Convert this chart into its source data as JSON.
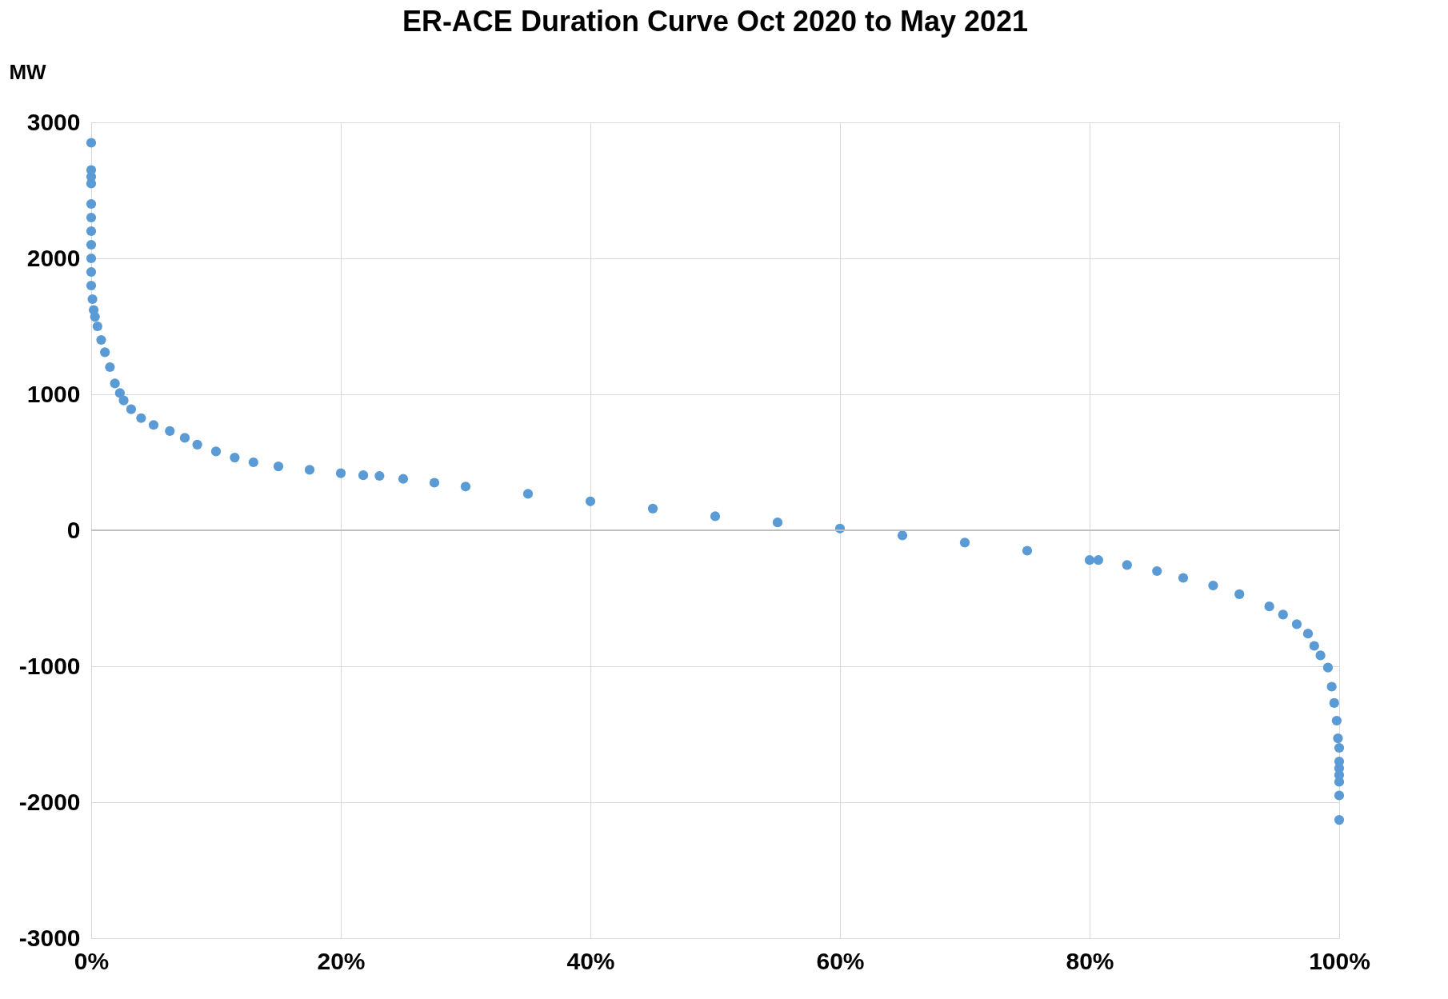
{
  "chart_data": {
    "type": "scatter",
    "title": "ER-ACE Duration Curve Oct 2020 to May 2021",
    "ylabel": "MW",
    "x": [
      0,
      0,
      0,
      0,
      0,
      0,
      0,
      0,
      0,
      0,
      0,
      0.001,
      0.002,
      0.003,
      0.005,
      0.008,
      0.011,
      0.015,
      0.019,
      0.023,
      0.026,
      0.032,
      0.04,
      0.05,
      0.063,
      0.075,
      0.085,
      0.1,
      0.115,
      0.13,
      0.15,
      0.175,
      0.2,
      0.218,
      0.231,
      0.25,
      0.275,
      0.3,
      0.35,
      0.4,
      0.45,
      0.5,
      0.55,
      0.6,
      0.65,
      0.7,
      0.75,
      0.8,
      0.807,
      0.83,
      0.854,
      0.875,
      0.899,
      0.92,
      0.944,
      0.955,
      0.966,
      0.975,
      0.98,
      0.985,
      0.991,
      0.994,
      0.996,
      0.998,
      0.999,
      1,
      1,
      1,
      1,
      1,
      1,
      1
    ],
    "series": [
      {
        "color": "#5b9bd5",
        "values": [
          2850,
          2650,
          2600,
          2550,
          2400,
          2300,
          2200,
          2100,
          2000,
          1900,
          1800,
          1700,
          1620,
          1570,
          1500,
          1400,
          1310,
          1200,
          1080,
          1010,
          955,
          890,
          825,
          775,
          730,
          680,
          630,
          580,
          535,
          500,
          470,
          445,
          420,
          405,
          400,
          378,
          350,
          322,
          268,
          213,
          160,
          103,
          58,
          13,
          -38,
          -90,
          -150,
          -219,
          -219,
          -255,
          -300,
          -350,
          -406,
          -470,
          -560,
          -620,
          -690,
          -760,
          -850,
          -920,
          -1010,
          -1150,
          -1270,
          -1400,
          -1530,
          -1600,
          -1700,
          -1750,
          -1800,
          -1850,
          -1950,
          -2130
        ]
      }
    ],
    "xlim": [
      0,
      1
    ],
    "xticks": [
      {
        "value": 0,
        "label": "0%"
      },
      {
        "value": 0.2,
        "label": "20%"
      },
      {
        "value": 0.4,
        "label": "40%"
      },
      {
        "value": 0.6,
        "label": "60%"
      },
      {
        "value": 0.8,
        "label": "80%"
      },
      {
        "value": 1,
        "label": "100%"
      }
    ],
    "ylim": [
      -3000,
      3000
    ],
    "yticks": [
      -3000,
      -2000,
      -1000,
      0,
      1000,
      2000,
      3000
    ],
    "ref_lines": [
      {
        "axis": "y",
        "value": 0,
        "color": "#bfbfbf"
      }
    ],
    "grid": true,
    "marker": "circle",
    "legend": false
  }
}
